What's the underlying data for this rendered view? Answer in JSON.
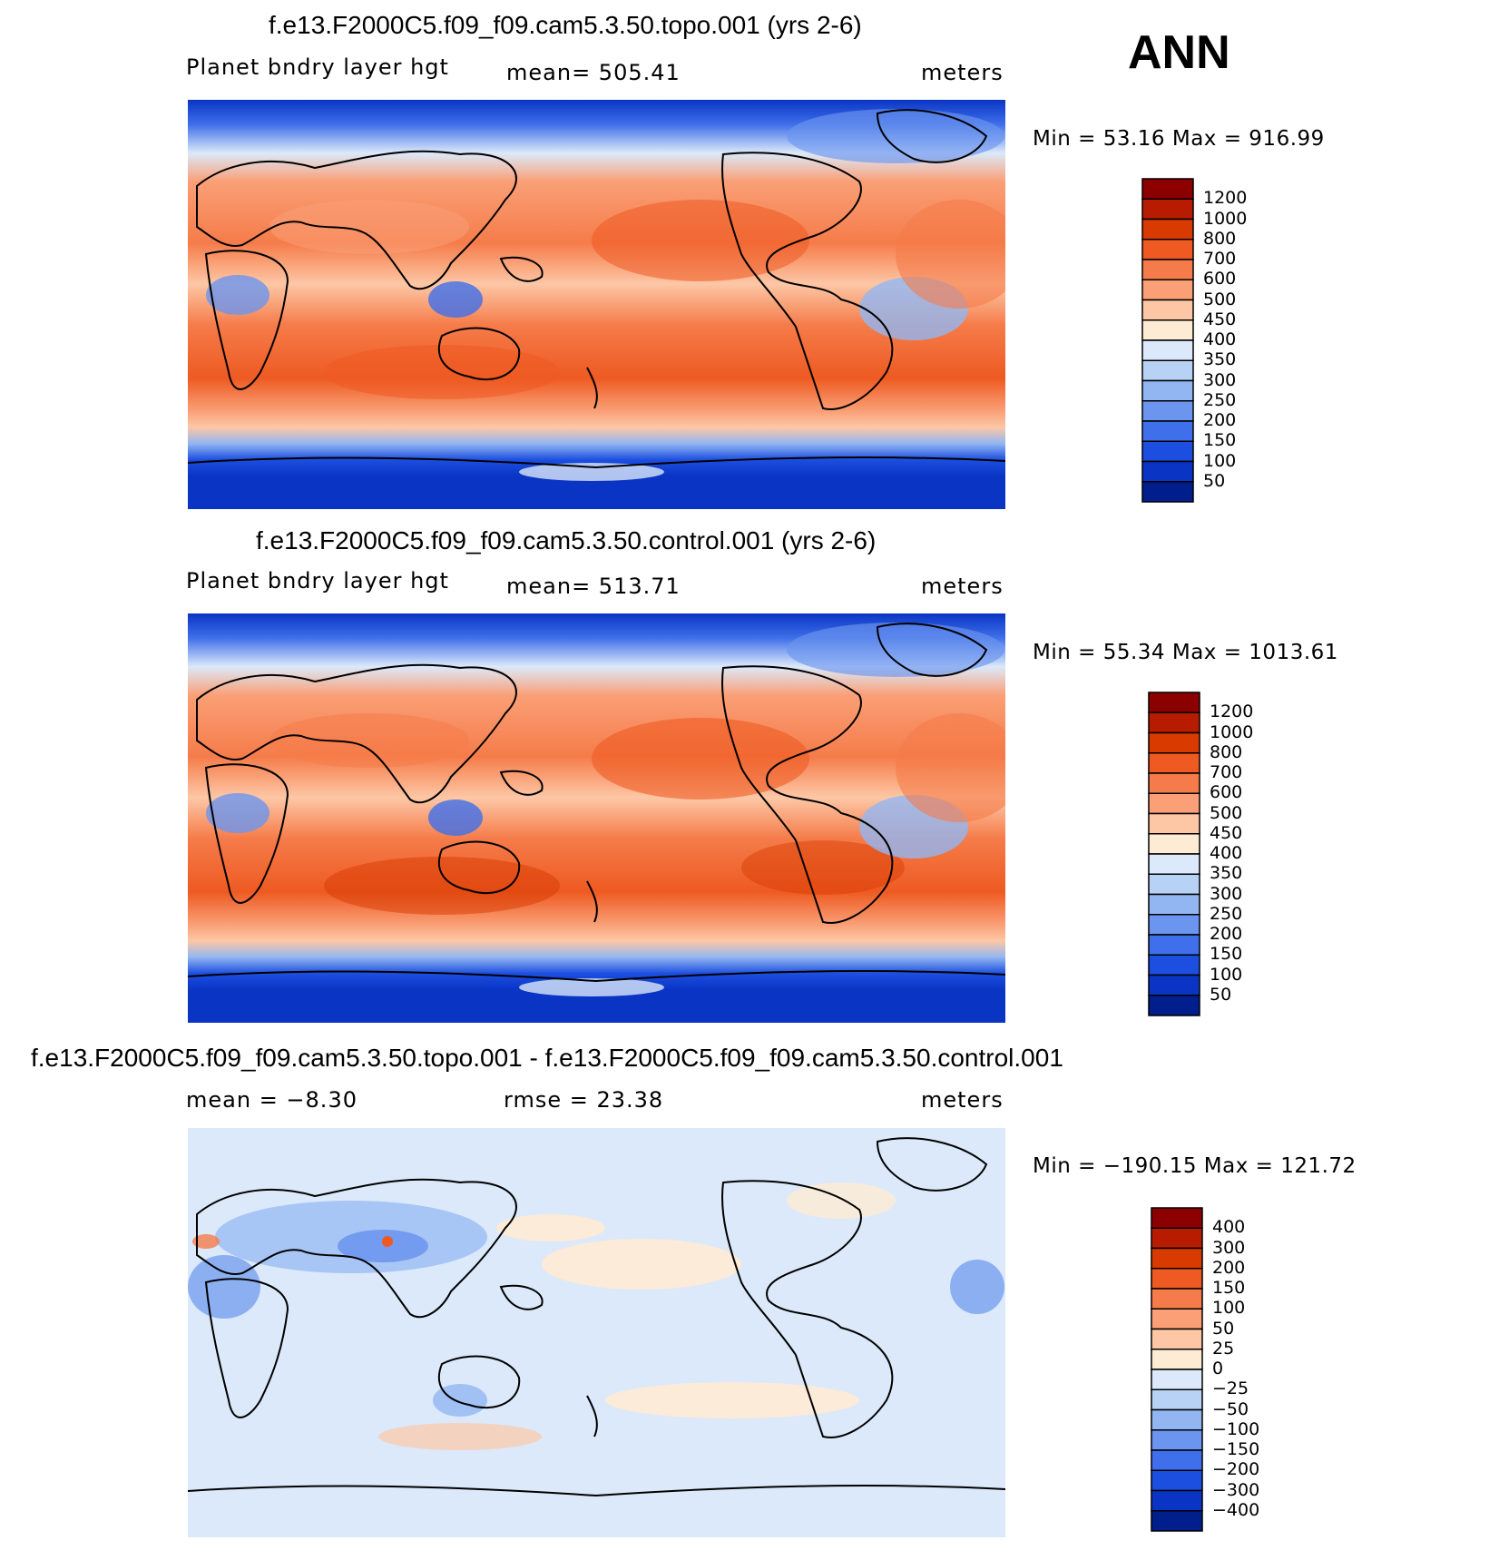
{
  "overall_title": "ANN",
  "panels": [
    {
      "title": "f.e13.F2000C5.f09_f09.cam5.3.50.topo.001 (yrs 2-6)",
      "left_label": "Planet bndry layer hgt",
      "center_label": "mean=  505.41",
      "right_label": "meters",
      "minmax": "Min =   53.16  Max  =  916.99"
    },
    {
      "title": "f.e13.F2000C5.f09_f09.cam5.3.50.control.001 (yrs 2-6)",
      "left_label": "Planet bndry layer hgt",
      "center_label": "mean=  513.71",
      "right_label": "meters",
      "minmax": "Min =   55.34  Max  =  1013.61"
    },
    {
      "title": "f.e13.F2000C5.f09_f09.cam5.3.50.topo.001 - f.e13.F2000C5.f09_f09.cam5.3.50.control.001",
      "left_label": "mean =    −8.30",
      "center_label": "rmse =    23.38",
      "right_label": "meters",
      "minmax": "Min  =  −190.15  Max  =  121.72"
    }
  ],
  "chart_data": [
    {
      "type": "heatmap",
      "title": "f.e13.F2000C5.f09_f09.cam5.3.50.topo.001 (yrs 2-6)",
      "variable": "Planet bndry layer hgt",
      "units": "meters",
      "mean": 505.41,
      "min": 53.16,
      "max": 916.99,
      "colorbar_levels": [
        "1200",
        "1000",
        "800",
        "700",
        "600",
        "500",
        "450",
        "400",
        "350",
        "300",
        "250",
        "200",
        "150",
        "100",
        "50"
      ],
      "colorbar_colors": [
        "#8c0000",
        "#b81c00",
        "#d83a00",
        "#ee5a22",
        "#f57c4a",
        "#fa9f76",
        "#fdc7a6",
        "#feebd4",
        "#dbe9fa",
        "#b8d2f6",
        "#92b6f2",
        "#6b95ee",
        "#3f6fea",
        "#1c4ee0",
        "#0a35c4",
        "#001e8c"
      ]
    },
    {
      "type": "heatmap",
      "title": "f.e13.F2000C5.f09_f09.cam5.3.50.control.001 (yrs 2-6)",
      "variable": "Planet bndry layer hgt",
      "units": "meters",
      "mean": 513.71,
      "min": 55.34,
      "max": 1013.61,
      "colorbar_levels": [
        "1200",
        "1000",
        "800",
        "700",
        "600",
        "500",
        "450",
        "400",
        "350",
        "300",
        "250",
        "200",
        "150",
        "100",
        "50"
      ],
      "colorbar_colors": [
        "#8c0000",
        "#b81c00",
        "#d83a00",
        "#ee5a22",
        "#f57c4a",
        "#fa9f76",
        "#fdc7a6",
        "#feebd4",
        "#dbe9fa",
        "#b8d2f6",
        "#92b6f2",
        "#6b95ee",
        "#3f6fea",
        "#1c4ee0",
        "#0a35c4",
        "#001e8c"
      ]
    },
    {
      "type": "heatmap",
      "title": "f.e13.F2000C5.f09_f09.cam5.3.50.topo.001 - f.e13.F2000C5.f09_f09.cam5.3.50.control.001",
      "units": "meters",
      "mean": -8.3,
      "rmse": 23.38,
      "min": -190.15,
      "max": 121.72,
      "colorbar_levels": [
        "400",
        "300",
        "200",
        "150",
        "100",
        "50",
        "25",
        "0",
        "−25",
        "−50",
        "−100",
        "−150",
        "−200",
        "−300",
        "−400"
      ],
      "colorbar_colors": [
        "#8c0000",
        "#b81c00",
        "#d83a00",
        "#ee5a22",
        "#f57c4a",
        "#fa9f76",
        "#fdc7a6",
        "#feebd4",
        "#dbe9fa",
        "#b8d2f6",
        "#92b6f2",
        "#6b95ee",
        "#3f6fea",
        "#1c4ee0",
        "#0a35c4",
        "#001e8c"
      ]
    }
  ]
}
